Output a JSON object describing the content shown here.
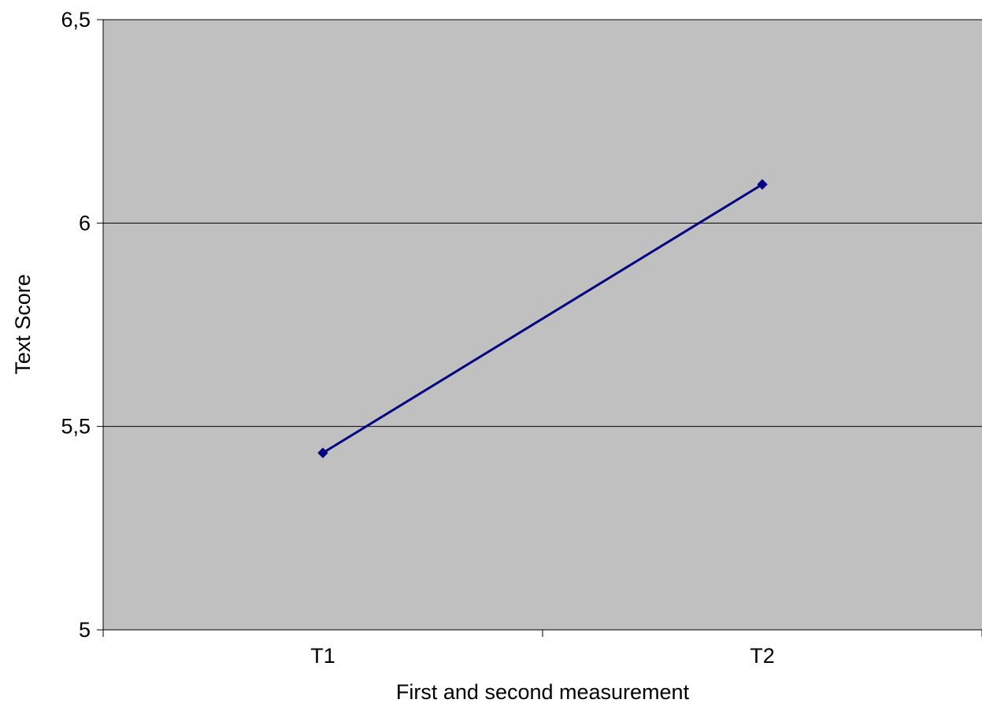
{
  "chart_data": {
    "type": "line",
    "categories": [
      "T1",
      "T2"
    ],
    "series": [
      {
        "values": [
          5.435,
          6.095
        ],
        "color": "#000080",
        "marker": "diamond"
      }
    ],
    "xlabel": "First and second measurement",
    "ylabel": "Text Score",
    "ylim": [
      5,
      6.5
    ],
    "yticks": [
      5,
      5.5,
      6,
      6.5
    ],
    "ytick_labels": [
      "5",
      "5,5",
      "6",
      "6,5"
    ],
    "grid": true,
    "plot_background": "#c0c0c0",
    "legend": "none"
  }
}
